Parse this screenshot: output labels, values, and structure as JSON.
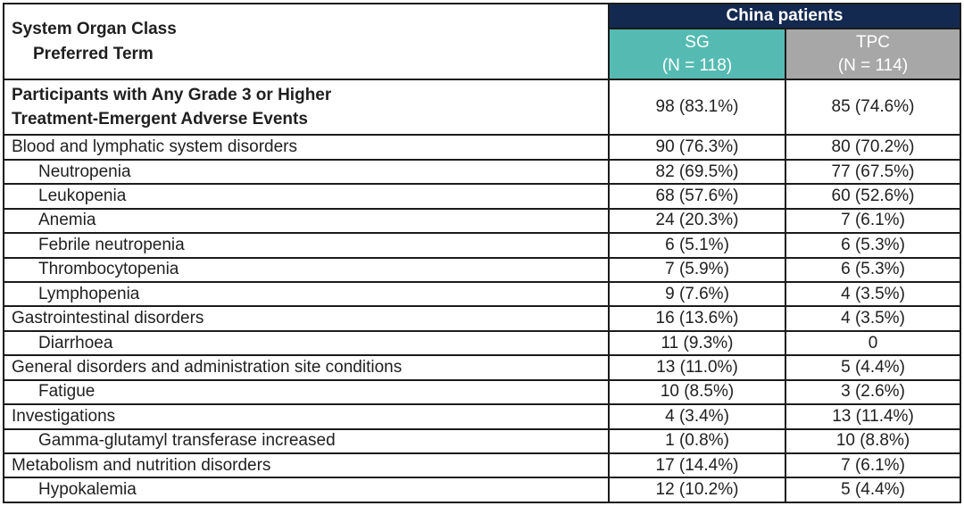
{
  "table": {
    "col1_header": {
      "line1": "System Organ Class",
      "line2": "Preferred Term"
    },
    "group_header": "China patients",
    "columns": {
      "sg": {
        "name": "SG",
        "n": "(N = 118)"
      },
      "tpc": {
        "name": "TPC",
        "n": "(N = 114)"
      }
    },
    "summary_row": {
      "label_line1": "Participants with Any Grade 3 or Higher",
      "label_line2": "Treatment-Emergent Adverse Events",
      "sg": "98 (83.1%)",
      "tpc": "85 (74.6%)"
    },
    "rows": [
      {
        "label": "Blood and lymphatic system disorders",
        "sg": "90 (76.3%)",
        "tpc": "80 (70.2%)"
      },
      {
        "label": "Neutropenia",
        "sg": "82 (69.5%)",
        "tpc": "77 (67.5%)"
      },
      {
        "label": "Leukopenia",
        "sg": "68 (57.6%)",
        "tpc": "60 (52.6%)"
      },
      {
        "label": "Anemia",
        "sg": "24 (20.3%)",
        "tpc": "7 (6.1%)"
      },
      {
        "label": "Febrile neutropenia",
        "sg": "6 (5.1%)",
        "tpc": "6 (5.3%)"
      },
      {
        "label": "Thrombocytopenia",
        "sg": "7 (5.9%)",
        "tpc": "6 (5.3%)"
      },
      {
        "label": "Lymphopenia",
        "sg": "9 (7.6%)",
        "tpc": "4 (3.5%)"
      },
      {
        "label": "Gastrointestinal disorders",
        "sg": "16 (13.6%)",
        "tpc": "4 (3.5%)"
      },
      {
        "label": "Diarrhoea",
        "sg": "11 (9.3%)",
        "tpc": "0"
      },
      {
        "label": "General disorders and administration site conditions",
        "sg": "13 (11.0%)",
        "tpc": "5 (4.4%)"
      },
      {
        "label": "Fatigue",
        "sg": "10 (8.5%)",
        "tpc": "3 (2.6%)"
      },
      {
        "label": "Investigations",
        "sg": "4 (3.4%)",
        "tpc": "13 (11.4%)"
      },
      {
        "label": "Gamma-glutamyl transferase increased",
        "sg": "1 (0.8%)",
        "tpc": "10 (8.8%)"
      },
      {
        "label": "Metabolism and nutrition disorders",
        "sg": "17 (14.4%)",
        "tpc": "7 (6.1%)"
      },
      {
        "label": "Hypokalemia",
        "sg": "12 (10.2%)",
        "tpc": "5 (4.4%)"
      }
    ],
    "colors": {
      "header_navy": "#13294F",
      "sg_teal": "#55BBB2",
      "tpc_gray": "#A7A7A7",
      "border": "#1B1B1B",
      "text": "#1F1F1F"
    }
  }
}
